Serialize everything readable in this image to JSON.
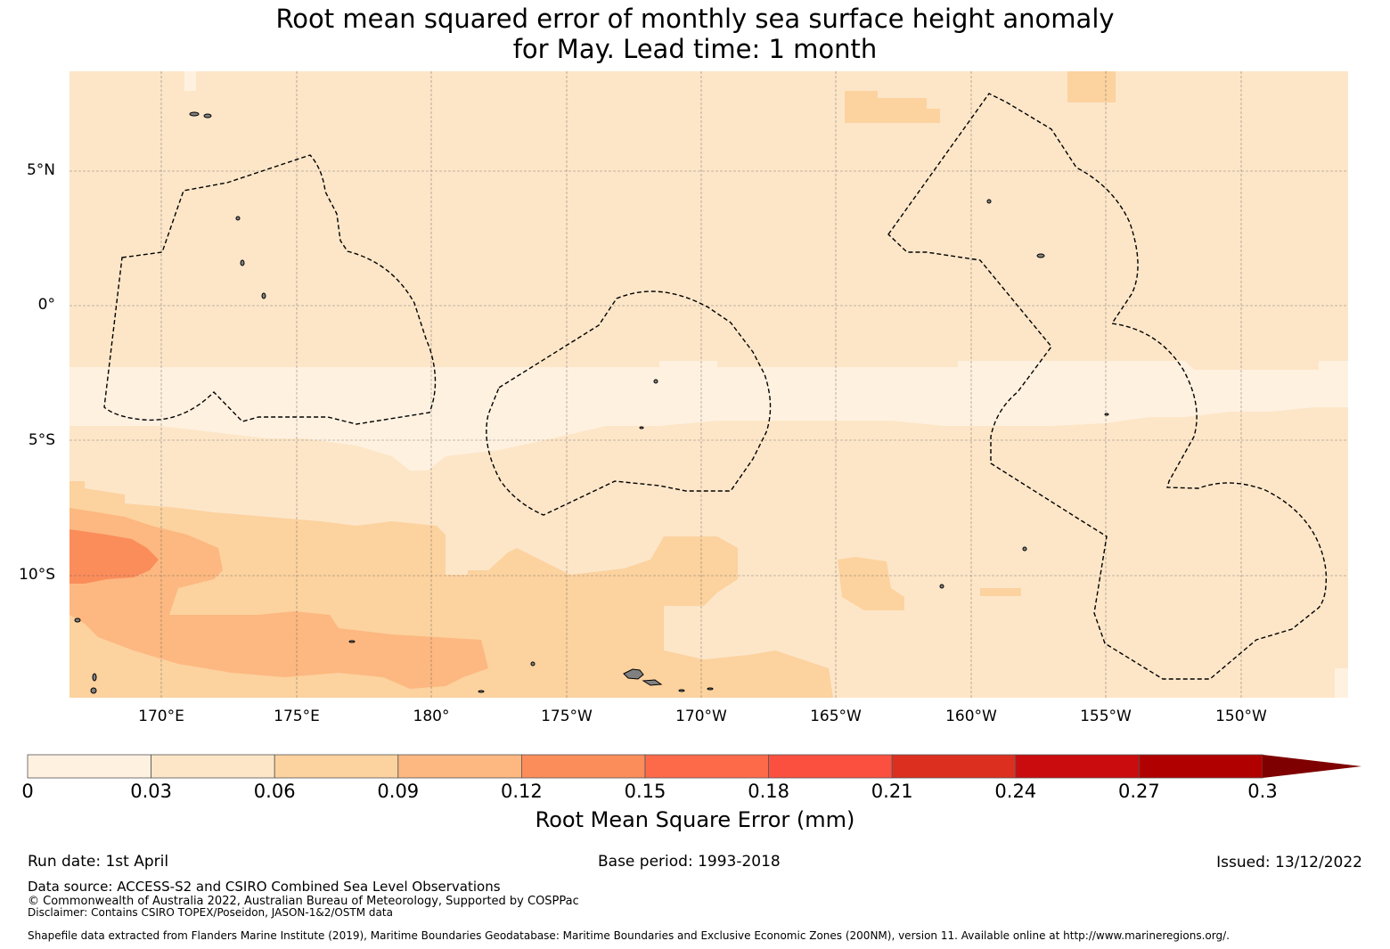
{
  "title": {
    "line1": "Root mean squared error of monthly sea surface height anomaly",
    "line2": "for May. Lead time: 1 month"
  },
  "map": {
    "lat_labels": [
      "5°N",
      "0°",
      "5°S",
      "10°S"
    ],
    "lon_labels": [
      "170°E",
      "175°E",
      "180°",
      "175°W",
      "170°W",
      "165°W",
      "160°W",
      "155°W",
      "150°W"
    ],
    "colors": {
      "bin_0_003": "#fff1e0",
      "bin_003_006": "#fde6c8",
      "bin_006_009": "#fcd29f",
      "bin_009_012": "#fcb880",
      "bin_012_015": "#fb8d5b",
      "land": "#808080",
      "eez_line": "#000000",
      "grid": "#555555"
    }
  },
  "colorbar": {
    "ticks": [
      "0",
      "0.03",
      "0.06",
      "0.09",
      "0.12",
      "0.15",
      "0.18",
      "0.21",
      "0.24",
      "0.27",
      "0.3"
    ],
    "colors": [
      "#fff1e0",
      "#fde6c8",
      "#fcd29f",
      "#fcb880",
      "#fb8d5b",
      "#fc6a4a",
      "#fb5040",
      "#dc2f20",
      "#ca0c0f",
      "#b10000",
      "#7f0000"
    ],
    "label": "Root Mean Square Error (mm)"
  },
  "footer": {
    "run_date": "Run date: 1st April",
    "base_period": "Base period: 1993-2018",
    "issued": "Issued: 13/12/2022",
    "data_source": "Data source: ACCESS-S2 and CSIRO Combined Sea Level Observations",
    "copyright": "© Commonwealth of Australia 2022, Australian Bureau of Meteorology, Supported by COSPPac",
    "disclaimer": "Disclaimer: Contains CSIRO TOPEX/Poseidon, JASON-1&2/OSTM data",
    "shapefile": "Shapefile data extracted from Flanders Marine Institute (2019), Maritime Boundaries Geodatabase: Maritime Boundaries and Exclusive Economic Zones (200NM), version 11. Available online at http://www.marineregions.org/."
  }
}
